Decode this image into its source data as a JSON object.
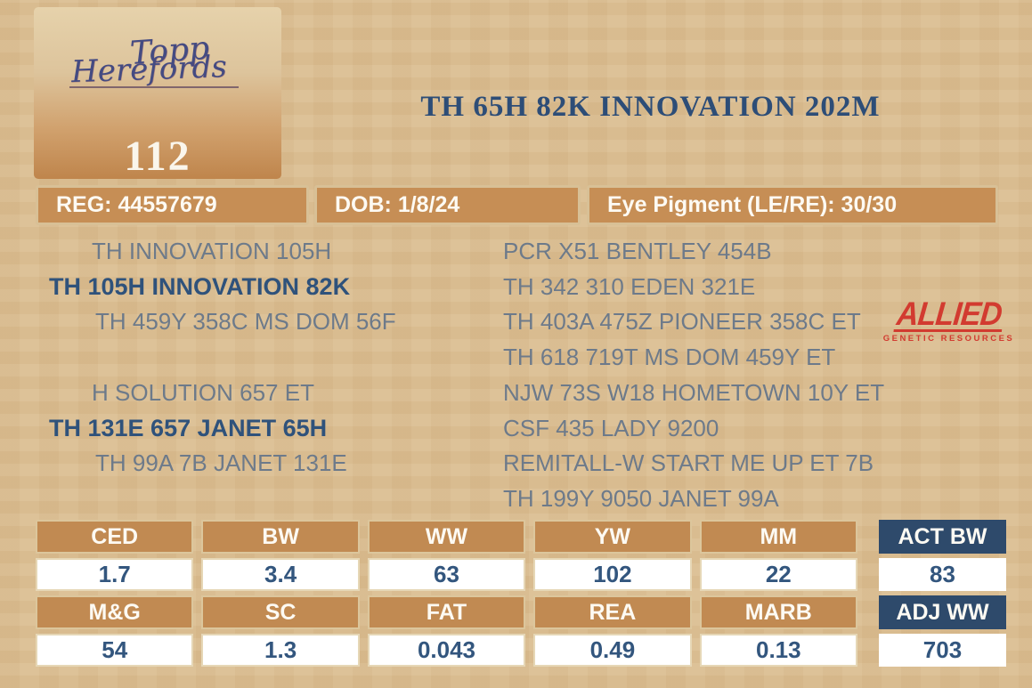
{
  "lot": {
    "number": "112",
    "ranch_script_line1": "Topp",
    "ranch_script_line2": "Herefords"
  },
  "title": "TH 65H 82K INNOVATION 202M",
  "info_bar": {
    "reg": "REG: 44557679",
    "dob": "DOB: 1/8/24",
    "eye_pigment": "Eye Pigment (LE/RE): 30/30"
  },
  "pedigree": {
    "sire": {
      "grandsire": "TH INNOVATION 105H",
      "name": "TH 105H INNOVATION 82K",
      "granddam": "TH 459Y 358C MS DOM 56F"
    },
    "dam": {
      "grandsire": "H SOLUTION 657 ET",
      "name": "TH 131E 657 JANET 65H",
      "granddam": "TH 99A 7B JANET 131E"
    },
    "ancestors": [
      "PCR X51 BENTLEY 454B",
      "TH 342 310 EDEN 321E",
      "TH 403A 475Z PIONEER 358C ET",
      "TH 618 719T MS DOM 459Y ET",
      "NJW 73S W18 HOMETOWN 10Y ET",
      "CSF 435 LADY 9200",
      "REMITALL-W START ME UP ET 7B",
      "TH 199Y 9050 JANET 99A"
    ]
  },
  "allied": {
    "name": "ALLIED",
    "tagline": "GENETIC RESOURCES",
    "brand_color": "#d23b30"
  },
  "epd": {
    "rows": [
      {
        "headers": [
          "CED",
          "BW",
          "WW",
          "YW",
          "MM"
        ],
        "values": [
          "1.7",
          "3.4",
          "63",
          "102",
          "22"
        ]
      },
      {
        "headers": [
          "M&G",
          "SC",
          "FAT",
          "REA",
          "MARB"
        ],
        "values": [
          "54",
          "1.3",
          "0.043",
          "0.49",
          "0.13"
        ]
      }
    ],
    "actuals": [
      {
        "label": "ACT BW",
        "value": "83"
      },
      {
        "label": "ADJ WW",
        "value": "703"
      }
    ]
  },
  "colors": {
    "background_tan": "#d9bc90",
    "bar_orange": "#c68e55",
    "header_orange": "#c18a52",
    "navy": "#2e4a6b",
    "title_navy": "#2d4d77",
    "pedigree_gray": "#6d7a8a"
  }
}
